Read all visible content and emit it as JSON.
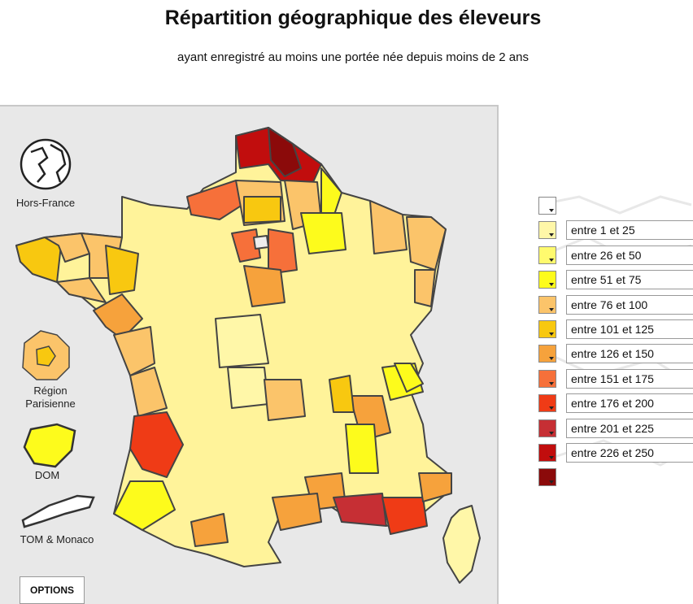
{
  "header": {
    "title": "Répartition géographique des éleveurs",
    "subtitle": "ayant enregistré au moins une portée née depuis moins de 2 ans"
  },
  "side": {
    "hors_france": "Hors-France",
    "region_parisienne_line1": "Région",
    "region_parisienne_line2": "Parisienne",
    "dom": "DOM",
    "tom": "TOM & Monaco"
  },
  "options_label": "OPTIONS",
  "legend": {
    "items": [
      {
        "label": "",
        "color": "#ffffff"
      },
      {
        "label": "entre 1 et 25",
        "color": "#fff7a8"
      },
      {
        "label": "entre 26 et 50",
        "color": "#fffa6e"
      },
      {
        "label": "entre 51 et 75",
        "color": "#fdfb1c"
      },
      {
        "label": "entre 76 et 100",
        "color": "#fbc46a"
      },
      {
        "label": "entre 101 et 125",
        "color": "#f8c810"
      },
      {
        "label": "entre 126 et 150",
        "color": "#f6a23c"
      },
      {
        "label": "entre 151 et 175",
        "color": "#f6703a"
      },
      {
        "label": "entre 176 et 200",
        "color": "#ef3b16"
      },
      {
        "label": "entre 201 et 225",
        "color": "#c62f34"
      },
      {
        "label": "entre 226 et 250",
        "color": "#c10d0d"
      },
      {
        "label": "",
        "color": "#8b0a0a"
      }
    ]
  }
}
